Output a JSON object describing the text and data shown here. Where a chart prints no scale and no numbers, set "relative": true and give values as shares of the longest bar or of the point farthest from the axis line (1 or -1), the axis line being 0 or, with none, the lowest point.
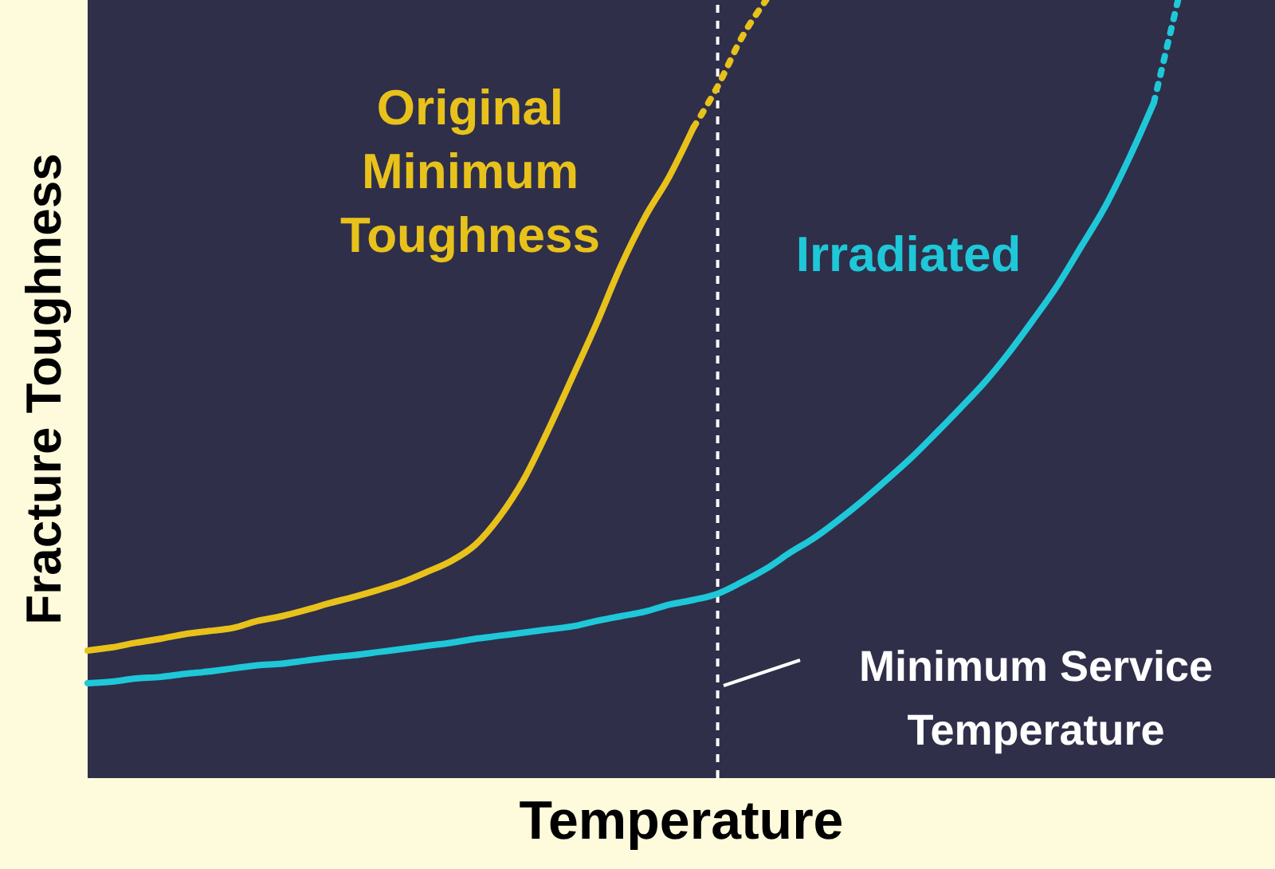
{
  "chart_data": {
    "type": "line",
    "relative": true,
    "xlabel": "Temperature",
    "ylabel": "Fracture Toughness",
    "marker": "none",
    "categories": [
      null,
      null,
      null,
      null,
      null,
      null,
      null,
      null,
      null,
      null,
      null,
      null,
      null,
      null,
      null,
      null,
      null,
      null,
      null,
      null,
      null,
      null,
      null,
      null,
      null,
      null,
      null,
      null,
      null,
      null,
      null,
      null,
      null,
      null,
      null,
      null,
      null,
      null,
      null,
      null,
      null,
      null,
      null,
      null,
      null,
      null,
      null,
      null,
      null,
      null
    ],
    "series": [
      {
        "name": "Original Minimum Toughness",
        "color": "#e8c21a",
        "line_style": "solid",
        "values": [
          0.164,
          0.168,
          0.174,
          0.179,
          0.185,
          0.189,
          0.193,
          0.202,
          0.208,
          0.216,
          0.225,
          0.233,
          0.242,
          0.252,
          0.265,
          0.279,
          0.3,
          0.336,
          0.384,
          0.447,
          0.515,
          0.584,
          0.658,
          0.721,
          0.773,
          0.836,
          null,
          null,
          null,
          null,
          null,
          null,
          null,
          null,
          null,
          null,
          null,
          null,
          null,
          null,
          null,
          null,
          null,
          null,
          null,
          null,
          null,
          null,
          null,
          null
        ]
      },
      {
        "color": "#e8c21a",
        "line_style": "dotted",
        "values": [
          null,
          null,
          null,
          null,
          null,
          null,
          null,
          null,
          null,
          null,
          null,
          null,
          null,
          null,
          null,
          null,
          null,
          null,
          null,
          null,
          null,
          null,
          null,
          null,
          null,
          0.836,
          0.889,
          0.952,
          1.0,
          null,
          null,
          null,
          null,
          null,
          null,
          null,
          null,
          null,
          null,
          null,
          null,
          null,
          null,
          null,
          null,
          null,
          null,
          null,
          null,
          null
        ]
      },
      {
        "name": "Irradiated",
        "color": "#1ec8d8",
        "line_style": "solid",
        "values": [
          0.122,
          0.124,
          0.128,
          0.13,
          0.134,
          0.137,
          0.141,
          0.145,
          0.147,
          0.151,
          0.155,
          0.158,
          0.162,
          0.166,
          0.17,
          0.174,
          0.179,
          0.183,
          0.187,
          0.191,
          0.195,
          0.202,
          0.208,
          0.214,
          0.223,
          0.229,
          0.237,
          0.252,
          0.269,
          0.29,
          0.309,
          0.332,
          0.357,
          0.384,
          0.412,
          0.443,
          0.475,
          0.508,
          0.546,
          0.588,
          0.632,
          0.683,
          0.735,
          0.798,
          0.868,
          null,
          null,
          null,
          null,
          null
        ]
      },
      {
        "color": "#1ec8d8",
        "line_style": "dotted",
        "values": [
          null,
          null,
          null,
          null,
          null,
          null,
          null,
          null,
          null,
          null,
          null,
          null,
          null,
          null,
          null,
          null,
          null,
          null,
          null,
          null,
          null,
          null,
          null,
          null,
          null,
          null,
          null,
          null,
          null,
          null,
          null,
          null,
          null,
          null,
          null,
          null,
          null,
          null,
          null,
          null,
          null,
          null,
          null,
          null,
          0.868,
          1.0,
          null,
          null,
          null,
          null
        ]
      }
    ],
    "annotations": [
      "Minimum Service Temperature"
    ],
    "grid": false,
    "legend": false
  }
}
